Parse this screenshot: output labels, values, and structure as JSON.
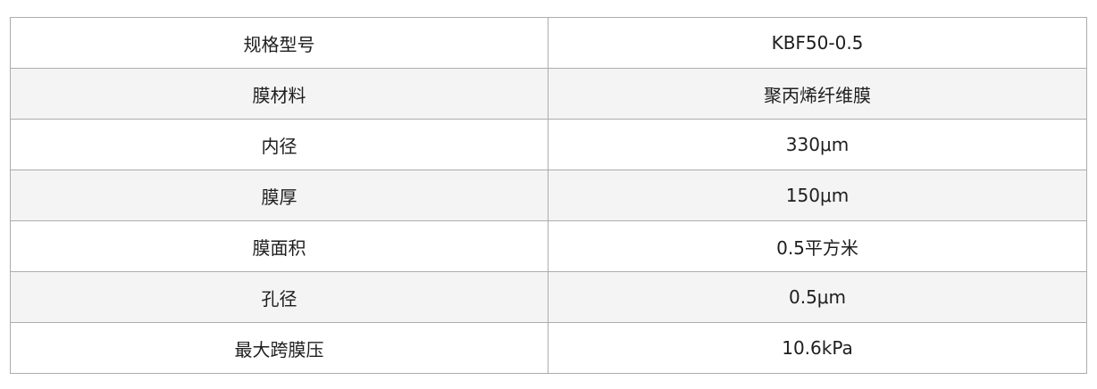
{
  "spec_table": {
    "rows": [
      {
        "label": "规格型号",
        "value": "KBF50-0.5"
      },
      {
        "label": "膜材料",
        "value": "聚丙烯纤维膜"
      },
      {
        "label": "内径",
        "value": "330μm"
      },
      {
        "label": "膜厚",
        "value": "150μm"
      },
      {
        "label": "膜面积",
        "value": "0.5平方米"
      },
      {
        "label": "孔径",
        "value": "0.5μm"
      },
      {
        "label": "最大跨膜压",
        "value": "10.6kPa"
      }
    ]
  },
  "colors": {
    "border": "#acacac",
    "stripe": "#f4f4f4",
    "text": "#1e1e1e"
  }
}
